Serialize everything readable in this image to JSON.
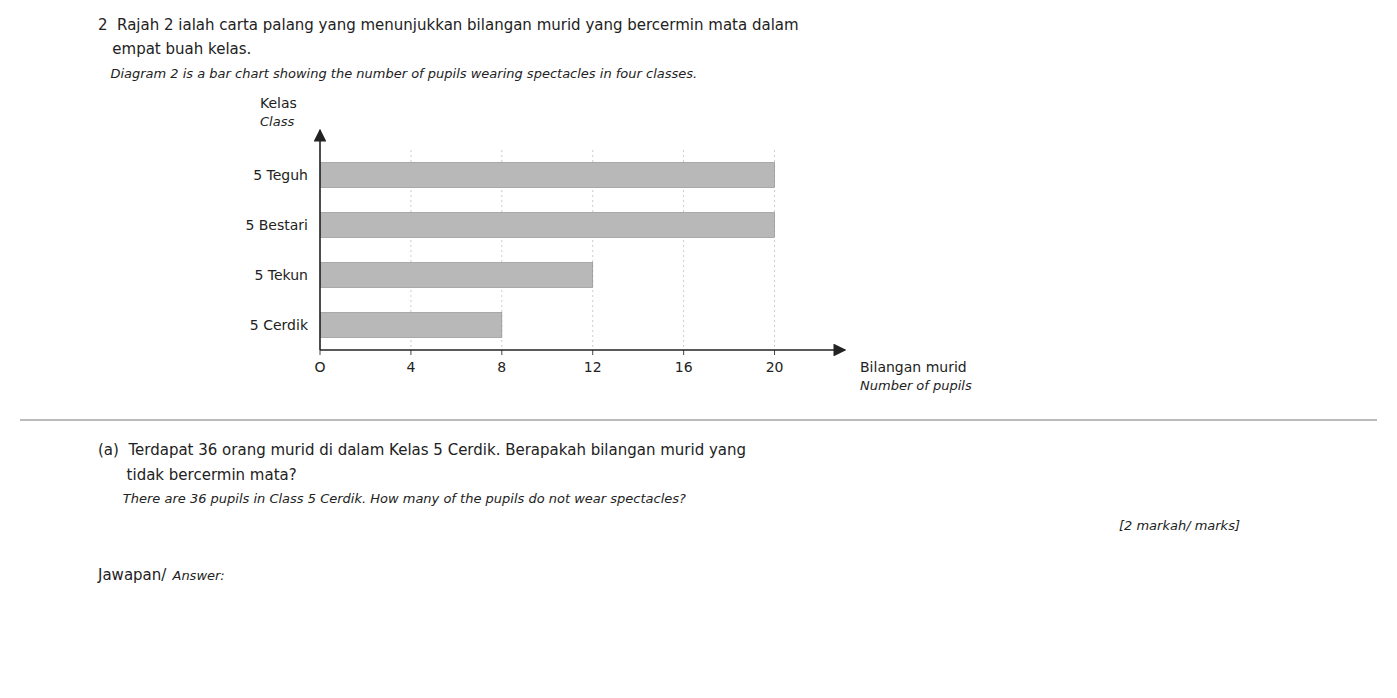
{
  "chart_data": {
    "type": "bar",
    "orientation": "horizontal",
    "title": [
      "2  Rajah 2 ialah carta palang yang menunjukkan bilangan murid yang bercermin mata dalam",
      "   empat buah kelas."
    ],
    "subtitle": "   Diagram 2 is a bar chart showing the number of pupils wearing spectacles in four classes.",
    "categories": [
      "5 Teguh",
      "5 Bestari",
      "5 Tekun",
      "5 Cerdik"
    ],
    "values": [
      20,
      20,
      12,
      8
    ],
    "color": "#b8b8b8",
    "x_label": [
      "Bilangan murid",
      "Number of pupils"
    ],
    "y_label": [
      "Kelas",
      "Class"
    ],
    "xlim": [
      0,
      22
    ],
    "xticks": [
      {
        "value": 0,
        "label": "O"
      },
      4,
      8,
      12,
      16,
      20
    ],
    "grid": true,
    "annotations": [
      "(a)  Terdapat 36 orang murid di dalam Kelas 5 Cerdik. Berapakah bilangan murid yang",
      "      tidak bercermin mata?",
      "      There are 36 pupils in Class 5 Cerdik. How many of the pupils do not wear spectacles?",
      "[2 markah/ marks]",
      "Jawapan/",
      " Answer:"
    ]
  }
}
